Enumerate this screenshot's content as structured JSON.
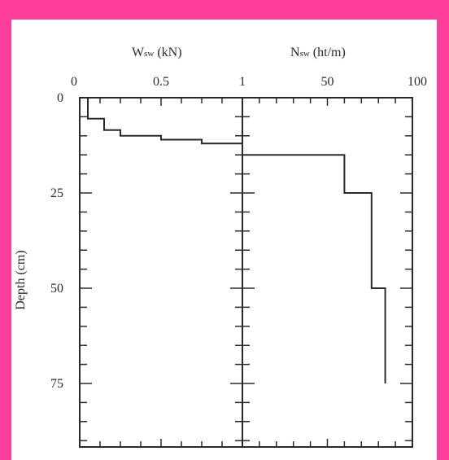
{
  "frame_color": "#ff3d9a",
  "ink_color": "#2a2a2a",
  "chart_data": [
    {
      "type": "line",
      "line_shape": "step",
      "title": "",
      "xlabel": "Wsw (kN)",
      "xlabel_main": "W",
      "xlabel_sub": "sw",
      "xlabel_unit": " (kN)",
      "ylabel": "Depth (cm)",
      "xlim": [
        0,
        1
      ],
      "ylim": [
        0,
        90
      ],
      "y_inverted": true,
      "x_ticks": [
        "0",
        "0.5",
        "1"
      ],
      "y_ticks": [
        "0",
        "25",
        "50",
        "75"
      ],
      "grid": false,
      "series": [
        {
          "x": [
            0.05,
            0.05,
            0.15,
            0.15,
            0.25,
            0.25,
            0.5,
            0.5,
            0.75,
            0.75,
            1.0,
            1.0
          ],
          "y": [
            0,
            5.5,
            5.5,
            8.5,
            8.5,
            10,
            10,
            11,
            11,
            12,
            12,
            15
          ]
        }
      ]
    },
    {
      "type": "line",
      "line_shape": "step",
      "title": "",
      "xlabel": "Nsw (ht/m)",
      "xlabel_main": "N",
      "xlabel_sub": "sw",
      "xlabel_unit": " (ht/m)",
      "ylabel": "Depth (cm)",
      "xlim": [
        0,
        100
      ],
      "ylim": [
        0,
        90
      ],
      "y_inverted": true,
      "x_ticks": [
        "50",
        "100"
      ],
      "grid": false,
      "series": [
        {
          "x": [
            0,
            60,
            60,
            76,
            76,
            84,
            84
          ],
          "y": [
            15,
            15,
            25,
            25,
            50,
            50,
            75
          ]
        }
      ]
    }
  ]
}
